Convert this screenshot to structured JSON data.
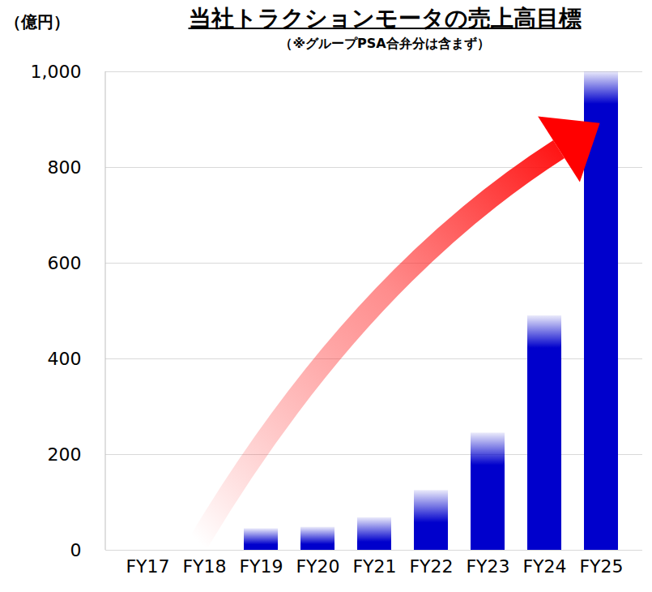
{
  "chart_data": {
    "type": "bar",
    "title": "当社トラクションモータの売上高目標",
    "subtitle": "（※グループPSA合弁分は含まず）",
    "y_label": "（億円）",
    "categories": [
      "FY17",
      "FY18",
      "FY19",
      "FY20",
      "FY21",
      "FY22",
      "FY23",
      "FY24",
      "FY25"
    ],
    "values": [
      0,
      0,
      45,
      48,
      68,
      125,
      245,
      490,
      1000
    ],
    "color": "#0000cc",
    "ylim": [
      0,
      1000
    ],
    "yticks": [
      0,
      200,
      400,
      600,
      800,
      {
        "value": 1000,
        "label": "1,000"
      }
    ],
    "grid": true
  }
}
